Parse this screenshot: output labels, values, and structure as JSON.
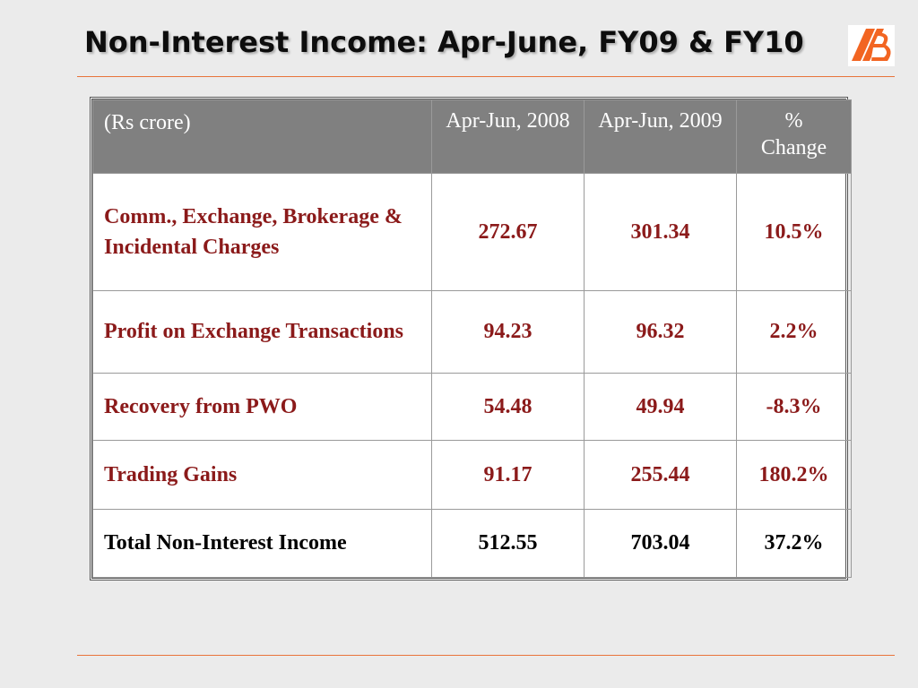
{
  "slide": {
    "title": "Non-Interest Income: Apr-June, FY09 & FY10"
  },
  "logo": {
    "icon": "bank-of-baroda-logo-icon",
    "colors": [
      "#f26522",
      "#ffffff"
    ]
  },
  "table": {
    "header": {
      "label": "(Rs crore)",
      "col1": "Apr-Jun, 2008",
      "col2": "Apr-Jun, 2009",
      "col3_line1": "%",
      "col3_line2": "Change"
    },
    "rows": [
      {
        "label": "Comm., Exchange, Brokerage & Incidental Charges",
        "v2008": "272.67",
        "v2009": "301.34",
        "change": "10.5%"
      },
      {
        "label": "Profit on Exchange Transactions",
        "v2008": "94.23",
        "v2009": "96.32",
        "change": "2.2%"
      },
      {
        "label": "Recovery from PWO",
        "v2008": "54.48",
        "v2009": "49.94",
        "change": "-8.3%"
      },
      {
        "label": "Trading Gains",
        "v2008": "91.17",
        "v2009": "255.44",
        "change": "180.2%"
      },
      {
        "label": "Total Non-Interest Income",
        "v2008": "512.55",
        "v2009": "703.04",
        "change": "37.2%"
      }
    ]
  },
  "colors": {
    "header_bg": "#808080",
    "row_text": "#8b1a1a",
    "accent_rule": "#e8743b"
  }
}
